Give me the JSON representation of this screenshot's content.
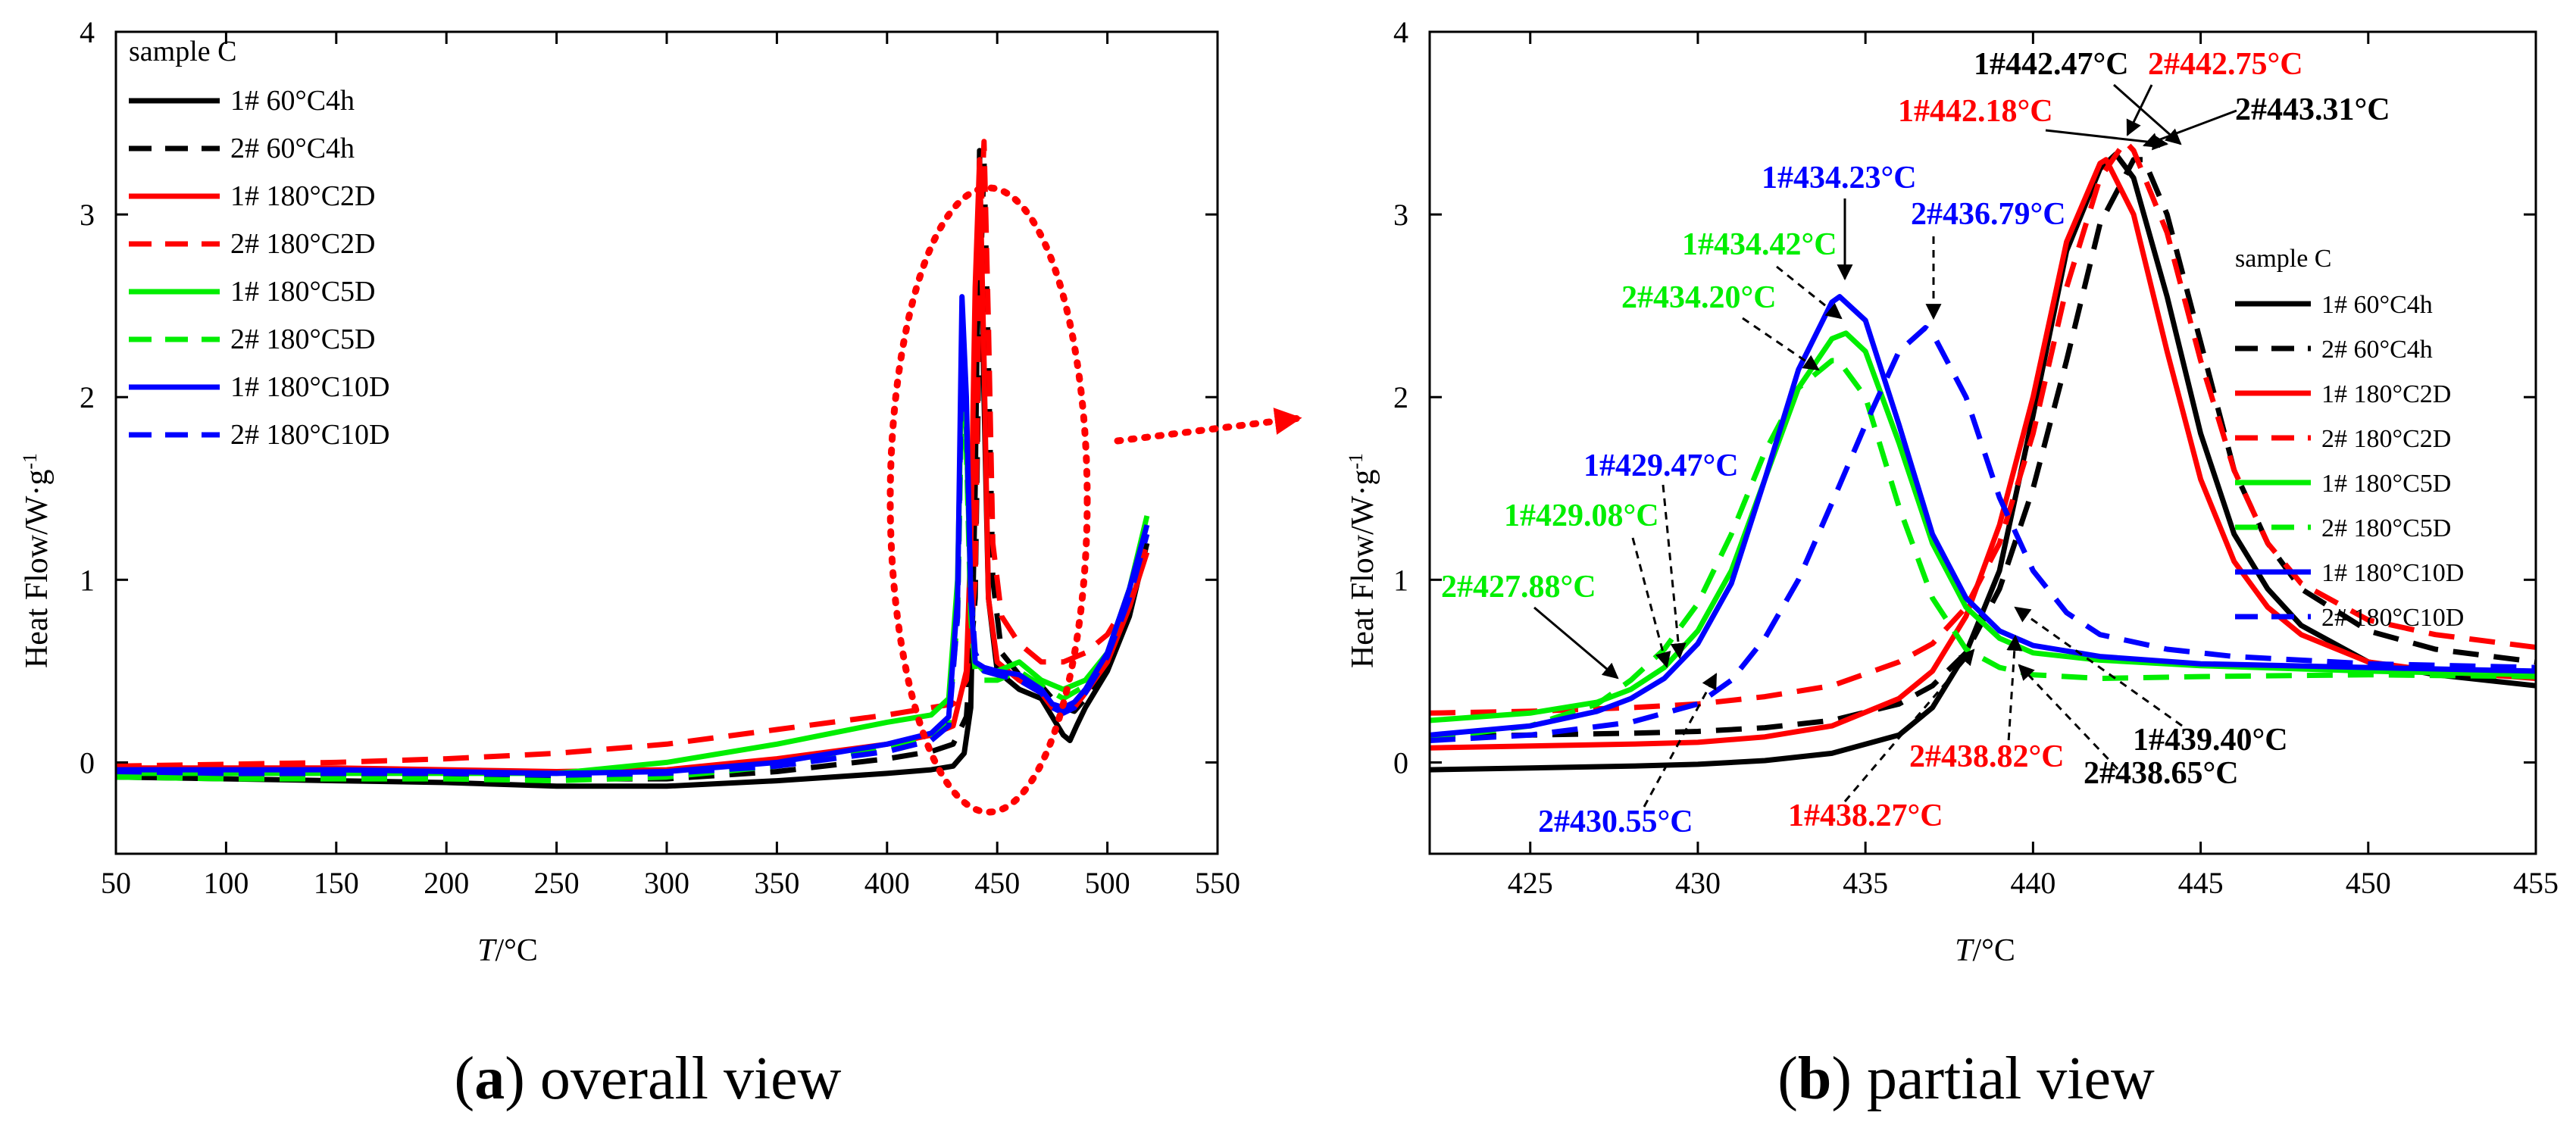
{
  "chart_data": [
    {
      "type": "line",
      "panel": "a",
      "caption_letter": "a",
      "caption_text": " overall view",
      "xlabel_italic": "T",
      "xlabel_unit": "/°C",
      "ylabel": "Heat Flow/W·g",
      "ylabel_sup": "-1",
      "xlim": [
        50,
        550
      ],
      "ylim": [
        -0.5,
        4
      ],
      "xticks": [
        "50",
        "100",
        "150",
        "200",
        "250",
        "300",
        "350",
        "400",
        "450",
        "500",
        "550"
      ],
      "yticks": [
        "0",
        "1",
        "2",
        "3",
        "4"
      ],
      "legend_title": "sample C",
      "series": [
        {
          "name": "1# 60°C4h",
          "color": "#000000",
          "dash": false,
          "x": [
            50,
            100,
            150,
            200,
            250,
            300,
            350,
            400,
            420,
            430,
            435,
            438,
            440,
            442,
            444,
            446,
            450,
            460,
            470,
            475,
            480,
            483,
            486,
            490,
            500,
            510,
            518
          ],
          "y": [
            -0.08,
            -0.09,
            -0.1,
            -0.11,
            -0.13,
            -0.13,
            -0.1,
            -0.06,
            -0.04,
            -0.02,
            0.05,
            0.3,
            1.5,
            3.35,
            2.0,
            0.9,
            0.5,
            0.4,
            0.35,
            0.25,
            0.15,
            0.12,
            0.2,
            0.3,
            0.5,
            0.8,
            1.2
          ]
        },
        {
          "name": "2# 60°C4h",
          "color": "#000000",
          "dash": true,
          "x": [
            50,
            100,
            150,
            200,
            250,
            300,
            350,
            400,
            420,
            430,
            436,
            440,
            442,
            444,
            446,
            448,
            452,
            460,
            470,
            475,
            480,
            485,
            490,
            500,
            510,
            518
          ],
          "y": [
            -0.06,
            -0.07,
            -0.07,
            -0.08,
            -0.09,
            -0.09,
            -0.05,
            0.02,
            0.06,
            0.1,
            0.25,
            0.9,
            2.5,
            3.3,
            2.2,
            1.0,
            0.6,
            0.48,
            0.42,
            0.35,
            0.3,
            0.28,
            0.35,
            0.55,
            0.85,
            1.2
          ]
        },
        {
          "name": "1# 180°C2D",
          "color": "#ff0000",
          "dash": false,
          "x": [
            50,
            100,
            150,
            200,
            250,
            300,
            350,
            400,
            420,
            430,
            436,
            438,
            440,
            442,
            444,
            446,
            450,
            460,
            470,
            475,
            480,
            485,
            490,
            500,
            510,
            518
          ],
          "y": [
            -0.03,
            -0.03,
            -0.03,
            -0.04,
            -0.05,
            -0.04,
            0.02,
            0.1,
            0.15,
            0.2,
            0.5,
            1.2,
            2.6,
            3.3,
            2.2,
            0.9,
            0.55,
            0.45,
            0.38,
            0.3,
            0.28,
            0.3,
            0.38,
            0.55,
            0.85,
            1.15
          ]
        },
        {
          "name": "2# 180°C2D",
          "color": "#ff0000",
          "dash": true,
          "x": [
            50,
            100,
            150,
            200,
            250,
            300,
            350,
            400,
            420,
            430,
            436,
            440,
            442,
            444,
            446,
            448,
            452,
            460,
            470,
            480,
            490,
            500,
            510,
            518
          ],
          "y": [
            -0.02,
            -0.01,
            0.0,
            0.02,
            0.05,
            0.1,
            0.18,
            0.26,
            0.3,
            0.32,
            0.45,
            1.0,
            2.8,
            3.4,
            2.4,
            1.2,
            0.8,
            0.65,
            0.55,
            0.55,
            0.6,
            0.7,
            0.9,
            1.2
          ]
        },
        {
          "name": "1# 180°C5D",
          "color": "#00ee00",
          "dash": false,
          "x": [
            50,
            100,
            150,
            200,
            250,
            300,
            350,
            400,
            420,
            428,
            432,
            434,
            436,
            438,
            440,
            444,
            450,
            460,
            470,
            480,
            490,
            500,
            510,
            518
          ],
          "y": [
            -0.06,
            -0.06,
            -0.06,
            -0.06,
            -0.06,
            0.0,
            0.1,
            0.22,
            0.26,
            0.35,
            1.0,
            2.2,
            1.8,
            0.9,
            0.55,
            0.5,
            0.5,
            0.55,
            0.45,
            0.4,
            0.45,
            0.6,
            0.95,
            1.35
          ]
        },
        {
          "name": "2# 180°C5D",
          "color": "#00ee00",
          "dash": true,
          "x": [
            50,
            100,
            150,
            200,
            250,
            300,
            350,
            400,
            420,
            428,
            432,
            434,
            436,
            438,
            440,
            444,
            450,
            460,
            470,
            480,
            490,
            500,
            510,
            518
          ],
          "y": [
            -0.08,
            -0.09,
            -0.09,
            -0.09,
            -0.1,
            -0.08,
            -0.02,
            0.08,
            0.14,
            0.22,
            0.8,
            2.05,
            1.7,
            0.8,
            0.5,
            0.45,
            0.45,
            0.5,
            0.42,
            0.35,
            0.42,
            0.6,
            0.95,
            1.3
          ]
        },
        {
          "name": "1# 180°C10D",
          "color": "#0000ff",
          "dash": false,
          "x": [
            50,
            100,
            150,
            200,
            250,
            300,
            350,
            400,
            420,
            428,
            432,
            434,
            436,
            438,
            440,
            444,
            450,
            460,
            470,
            475,
            480,
            485,
            490,
            500,
            510,
            518
          ],
          "y": [
            -0.04,
            -0.04,
            -0.04,
            -0.05,
            -0.06,
            -0.05,
            0.0,
            0.1,
            0.16,
            0.25,
            0.9,
            2.55,
            2.0,
            0.9,
            0.55,
            0.52,
            0.5,
            0.48,
            0.4,
            0.32,
            0.3,
            0.33,
            0.4,
            0.6,
            0.95,
            1.3
          ]
        },
        {
          "name": "2# 180°C10D",
          "color": "#0000ff",
          "dash": true,
          "x": [
            50,
            100,
            150,
            200,
            250,
            300,
            350,
            400,
            420,
            428,
            432,
            434,
            436,
            438,
            440,
            444,
            450,
            460,
            470,
            475,
            480,
            485,
            490,
            500,
            510,
            518
          ],
          "y": [
            -0.05,
            -0.06,
            -0.06,
            -0.06,
            -0.07,
            -0.06,
            -0.02,
            0.06,
            0.12,
            0.2,
            0.8,
            2.3,
            1.9,
            0.95,
            0.6,
            0.5,
            0.48,
            0.45,
            0.38,
            0.3,
            0.27,
            0.3,
            0.38,
            0.58,
            0.9,
            1.25
          ]
        }
      ]
    },
    {
      "type": "line",
      "panel": "b",
      "caption_letter": "b",
      "caption_text": " partial view",
      "xlabel_italic": "T",
      "xlabel_unit": "/°C",
      "ylabel": "Heat Flow/W·g",
      "ylabel_sup": "-1",
      "xlim": [
        422,
        455
      ],
      "ylim": [
        -0.5,
        4
      ],
      "xticks": [
        "425",
        "430",
        "435",
        "440",
        "445",
        "450",
        "455"
      ],
      "yticks": [
        "0",
        "1",
        "2",
        "3",
        "4"
      ],
      "legend_title": "sample C",
      "series": [
        {
          "name": "1# 60°C4h",
          "color": "#000000",
          "dash": false,
          "x": [
            422,
            425,
            428,
            430,
            432,
            434,
            436,
            437,
            438,
            439,
            440,
            441,
            442,
            442.47,
            443,
            444,
            445,
            446,
            447,
            448,
            450,
            452,
            455
          ],
          "y": [
            -0.04,
            -0.03,
            -0.02,
            -0.01,
            0.01,
            0.05,
            0.15,
            0.3,
            0.6,
            1.05,
            1.9,
            2.8,
            3.25,
            3.33,
            3.2,
            2.55,
            1.8,
            1.25,
            0.95,
            0.75,
            0.55,
            0.48,
            0.42
          ]
        },
        {
          "name": "2# 60°C4h",
          "color": "#000000",
          "dash": true,
          "x": [
            422,
            425,
            428,
            430,
            432,
            434,
            436,
            437,
            438,
            439,
            440,
            441,
            442,
            443,
            443.31,
            444,
            445,
            446,
            447,
            448,
            450,
            452,
            455
          ],
          "y": [
            0.14,
            0.15,
            0.16,
            0.17,
            0.19,
            0.23,
            0.32,
            0.42,
            0.6,
            0.95,
            1.5,
            2.2,
            2.95,
            3.3,
            3.3,
            3.0,
            2.3,
            1.6,
            1.2,
            0.95,
            0.72,
            0.62,
            0.55
          ]
        },
        {
          "name": "1# 180°C2D",
          "color": "#ff0000",
          "dash": false,
          "x": [
            422,
            425,
            428,
            430,
            432,
            434,
            436,
            437,
            438,
            439,
            440,
            441,
            442,
            442.18,
            443,
            444,
            445,
            446,
            447,
            448,
            450,
            452,
            455
          ],
          "y": [
            0.08,
            0.09,
            0.1,
            0.11,
            0.14,
            0.2,
            0.35,
            0.5,
            0.8,
            1.3,
            2.0,
            2.85,
            3.28,
            3.3,
            3.0,
            2.25,
            1.55,
            1.1,
            0.85,
            0.7,
            0.55,
            0.5,
            0.46
          ]
        },
        {
          "name": "2# 180°C2D",
          "color": "#ff0000",
          "dash": true,
          "x": [
            422,
            425,
            428,
            430,
            432,
            434,
            436,
            437,
            438,
            439,
            440,
            441,
            442,
            442.75,
            443,
            444,
            445,
            446,
            447,
            448,
            450,
            452,
            455
          ],
          "y": [
            0.27,
            0.28,
            0.3,
            0.32,
            0.36,
            0.42,
            0.55,
            0.65,
            0.85,
            1.2,
            1.8,
            2.6,
            3.2,
            3.4,
            3.35,
            2.9,
            2.2,
            1.6,
            1.2,
            0.98,
            0.78,
            0.7,
            0.63
          ]
        },
        {
          "name": "1# 180°C5D",
          "color": "#00ee00",
          "dash": false,
          "x": [
            422,
            425,
            427,
            428,
            429,
            430,
            431,
            432,
            433,
            434,
            434.42,
            435,
            436,
            437,
            438,
            439,
            440,
            442,
            445,
            450,
            455
          ],
          "y": [
            0.23,
            0.27,
            0.33,
            0.4,
            0.52,
            0.72,
            1.05,
            1.55,
            2.05,
            2.32,
            2.35,
            2.25,
            1.75,
            1.2,
            0.85,
            0.68,
            0.6,
            0.56,
            0.53,
            0.5,
            0.48
          ]
        },
        {
          "name": "2# 180°C5D",
          "color": "#00ee00",
          "dash": true,
          "x": [
            422,
            425,
            427,
            428,
            429,
            430,
            431,
            432,
            433,
            434,
            434.2,
            435,
            436,
            437,
            438,
            439,
            440,
            442,
            445,
            450,
            455
          ],
          "y": [
            0.13,
            0.2,
            0.32,
            0.45,
            0.62,
            0.87,
            1.25,
            1.7,
            2.05,
            2.2,
            2.2,
            2.0,
            1.4,
            0.9,
            0.62,
            0.52,
            0.48,
            0.46,
            0.47,
            0.48,
            0.47
          ]
        },
        {
          "name": "1# 180°C10D",
          "color": "#0000ff",
          "dash": false,
          "x": [
            422,
            425,
            427,
            428,
            429,
            430,
            431,
            432,
            433,
            434,
            434.23,
            435,
            436,
            437,
            438,
            439,
            440,
            442,
            445,
            450,
            455
          ],
          "y": [
            0.15,
            0.2,
            0.28,
            0.35,
            0.46,
            0.65,
            0.98,
            1.55,
            2.15,
            2.52,
            2.55,
            2.42,
            1.85,
            1.25,
            0.9,
            0.72,
            0.64,
            0.58,
            0.54,
            0.52,
            0.5
          ]
        },
        {
          "name": "2# 180°C10D",
          "color": "#0000ff",
          "dash": true,
          "x": [
            422,
            425,
            428,
            430,
            431,
            432,
            433,
            434,
            435,
            436,
            436.79,
            437,
            438,
            439,
            440,
            441,
            442,
            444,
            446,
            450,
            455
          ],
          "y": [
            0.12,
            0.15,
            0.22,
            0.32,
            0.45,
            0.68,
            1.0,
            1.42,
            1.85,
            2.25,
            2.38,
            2.35,
            2.0,
            1.45,
            1.05,
            0.82,
            0.7,
            0.62,
            0.58,
            0.54,
            0.52
          ]
        }
      ],
      "annotations": [
        {
          "text": "1#442.47°C",
          "color": "#000000"
        },
        {
          "text": "2#442.75°C",
          "color": "#ff0000"
        },
        {
          "text": "1#442.18°C",
          "color": "#ff0000"
        },
        {
          "text": "2#443.31°C",
          "color": "#000000"
        },
        {
          "text": "1#434.23°C",
          "color": "#0000ff"
        },
        {
          "text": "2#436.79°C",
          "color": "#0000ff"
        },
        {
          "text": "1#434.42°C",
          "color": "#00ee00"
        },
        {
          "text": "2#434.20°C",
          "color": "#00ee00"
        },
        {
          "text": "1#429.47°C",
          "color": "#0000ff"
        },
        {
          "text": "1#429.08°C",
          "color": "#00ee00"
        },
        {
          "text": "2#427.88°C",
          "color": "#00ee00"
        },
        {
          "text": "2#430.55°C",
          "color": "#0000ff"
        },
        {
          "text": "1#439.40°C",
          "color": "#000000"
        },
        {
          "text": "2#438.82°C",
          "color": "#ff0000"
        },
        {
          "text": "2#438.65°C",
          "color": "#000000"
        },
        {
          "text": "1#438.27°C",
          "color": "#ff0000"
        }
      ]
    }
  ]
}
